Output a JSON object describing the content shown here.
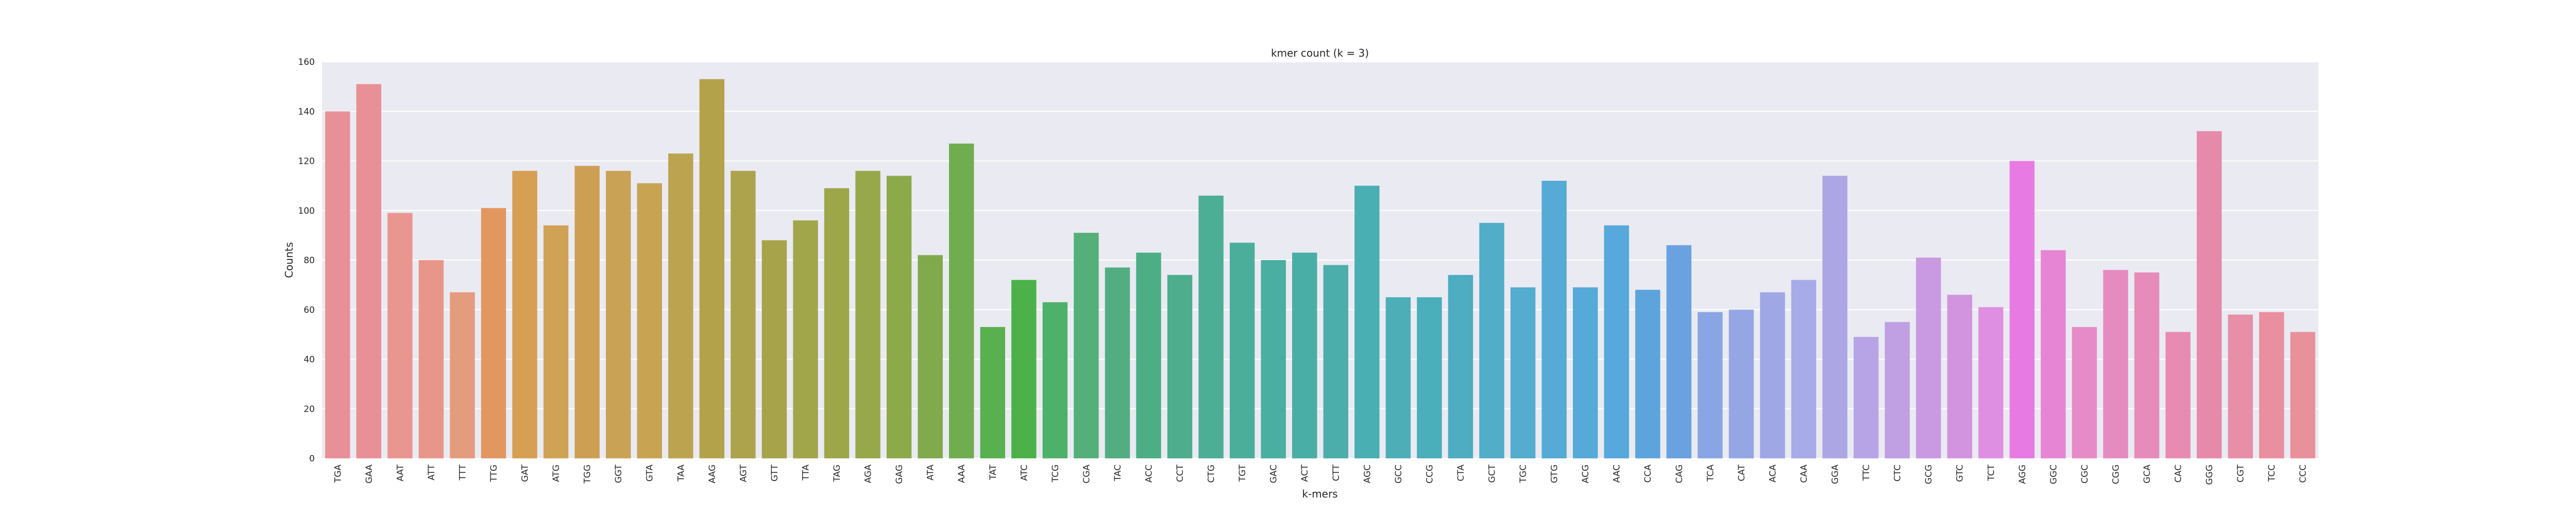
{
  "chart_data": {
    "type": "bar",
    "title": "kmer count (k = 3)",
    "xlabel": "k-mers",
    "ylabel": "Counts",
    "ylim": [
      0,
      160
    ],
    "yticks": [
      "0",
      "20",
      "40",
      "60",
      "80",
      "100",
      "120",
      "140",
      "160"
    ],
    "grid": true,
    "categories": [
      "TGA",
      "GAA",
      "AAT",
      "ATT",
      "TTT",
      "TTG",
      "GAT",
      "ATG",
      "TGG",
      "GGT",
      "GTA",
      "TAA",
      "AAG",
      "AGT",
      "GTT",
      "TTA",
      "TAG",
      "AGA",
      "GAG",
      "ATA",
      "AAA",
      "TAT",
      "ATC",
      "TCG",
      "CGA",
      "TAC",
      "ACC",
      "CCT",
      "CTG",
      "TGT",
      "GAC",
      "ACT",
      "CTT",
      "AGC",
      "GCC",
      "CCG",
      "CTA",
      "GCT",
      "TGC",
      "GTG",
      "ACG",
      "AAC",
      "CCA",
      "CAG",
      "TCA",
      "CAT",
      "ACA",
      "CAA",
      "GGA",
      "TTC",
      "CTC",
      "GCG",
      "GTC",
      "TCT",
      "AGG",
      "GGC",
      "CGC",
      "CGG",
      "GCA",
      "CAC",
      "GGG",
      "CGT",
      "TCC",
      "CCC"
    ],
    "values": [
      140,
      151,
      99,
      80,
      67,
      101,
      116,
      94,
      118,
      116,
      111,
      123,
      153,
      116,
      88,
      96,
      109,
      116,
      114,
      82,
      127,
      53,
      72,
      63,
      91,
      77,
      83,
      74,
      106,
      87,
      80,
      83,
      78,
      110,
      65,
      65,
      74,
      95,
      69,
      112,
      69,
      94,
      68,
      86,
      59,
      60,
      67,
      72,
      114,
      49,
      55,
      81,
      66,
      61,
      120,
      84,
      53,
      76,
      75,
      51,
      132,
      58,
      59,
      51
    ],
    "colors": [
      "#e89097",
      "#e89095",
      "#e8968f",
      "#e9968a",
      "#e59b7d",
      "#e39760",
      "#d79f53",
      "#d0a255",
      "#cd9f55",
      "#c9a255",
      "#c8a352",
      "#bca34f",
      "#b3a24a",
      "#aea34d",
      "#a7a34a",
      "#a2a64a",
      "#9ea64a",
      "#97a84b",
      "#8daa4b",
      "#80aa4c",
      "#6fad50",
      "#59b04f",
      "#4db14a",
      "#4eb16a",
      "#54b078",
      "#52ae81",
      "#4dae86",
      "#4cae8d",
      "#4cae95",
      "#4aae9b",
      "#4aaea1",
      "#49aea6",
      "#4baeab",
      "#49afb3",
      "#4daeb8",
      "#4aaebb",
      "#4eadc0",
      "#51adc8",
      "#54acce",
      "#55abd5",
      "#56aad9",
      "#57a8dc",
      "#5da4dd",
      "#6aa1e0",
      "#89a5e3",
      "#94a7e4",
      "#9fa8e5",
      "#a7abe7",
      "#ada6e4",
      "#b7a4e6",
      "#c09fe3",
      "#c99ae2",
      "#d293df",
      "#df8fe2",
      "#e87be3",
      "#e685d3",
      "#e68bc8",
      "#e68bc0",
      "#e78bba",
      "#e88bb2",
      "#e58aaa",
      "#e68fa7",
      "#e98fa0",
      "#e9919b"
    ]
  }
}
